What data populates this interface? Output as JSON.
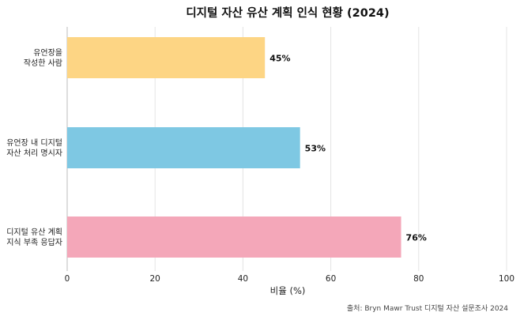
{
  "chart_data": {
    "type": "bar",
    "orientation": "horizontal",
    "title": "디지털 자산 유산 계획 인식 현황 (2024)",
    "categories": [
      [
        "유언장을",
        "작성한 사람"
      ],
      [
        "유언장 내 디지털",
        "자산 처리 명시자"
      ],
      [
        "디지털 유산 계획",
        "지식 부족 응답자"
      ]
    ],
    "values": [
      45,
      53,
      76
    ],
    "value_labels": [
      "45%",
      "53%",
      "76%"
    ],
    "colors": [
      "#FDD584",
      "#7EC8E3",
      "#F4A7B9"
    ],
    "xlabel": "비율 (%)",
    "ylabel": "",
    "xlim": [
      0,
      100
    ],
    "xticks": [
      0,
      20,
      40,
      60,
      80,
      100
    ],
    "grid": true,
    "source": "출처: Bryn Mawr Trust 디지털 자산 설문조사 2024"
  }
}
